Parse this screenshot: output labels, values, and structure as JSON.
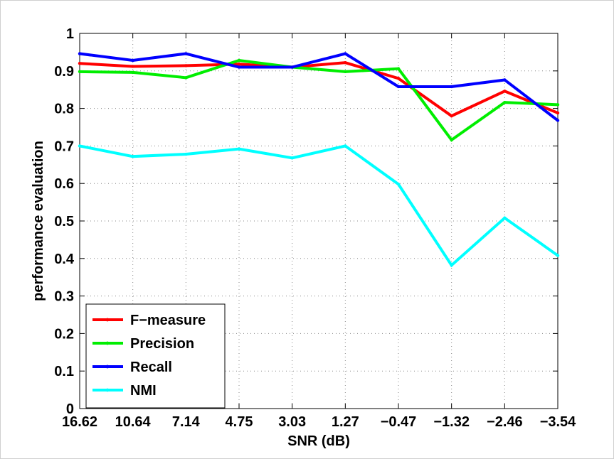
{
  "chart_data": {
    "type": "line",
    "title": "",
    "xlabel": "SNR (dB)",
    "ylabel": "performance evaluation",
    "categories": [
      "16.62",
      "10.64",
      "7.14",
      "4.75",
      "3.03",
      "1.27",
      "−0.47",
      "−1.32",
      "−2.46",
      "−3.54"
    ],
    "ylim": [
      0,
      1
    ],
    "yticks": [
      "0",
      "0.1",
      "0.2",
      "0.3",
      "0.4",
      "0.5",
      "0.6",
      "0.7",
      "0.8",
      "0.9",
      "1"
    ],
    "grid": true,
    "legend_position": "bottom-left",
    "series": [
      {
        "name": "F−measure",
        "color": "#ff0000",
        "values": [
          0.92,
          0.912,
          0.914,
          0.918,
          0.91,
          0.922,
          0.88,
          0.78,
          0.846,
          0.788
        ]
      },
      {
        "name": "Precision",
        "color": "#00ee00",
        "values": [
          0.898,
          0.896,
          0.882,
          0.928,
          0.91,
          0.898,
          0.906,
          0.716,
          0.816,
          0.81
        ]
      },
      {
        "name": "Recall",
        "color": "#0000ff",
        "values": [
          0.946,
          0.928,
          0.946,
          0.91,
          0.91,
          0.946,
          0.858,
          0.858,
          0.876,
          0.768
        ]
      },
      {
        "name": "NMI",
        "color": "#00ffff",
        "values": [
          0.7,
          0.672,
          0.678,
          0.692,
          0.668,
          0.7,
          0.598,
          0.382,
          0.508,
          0.408
        ]
      }
    ]
  }
}
